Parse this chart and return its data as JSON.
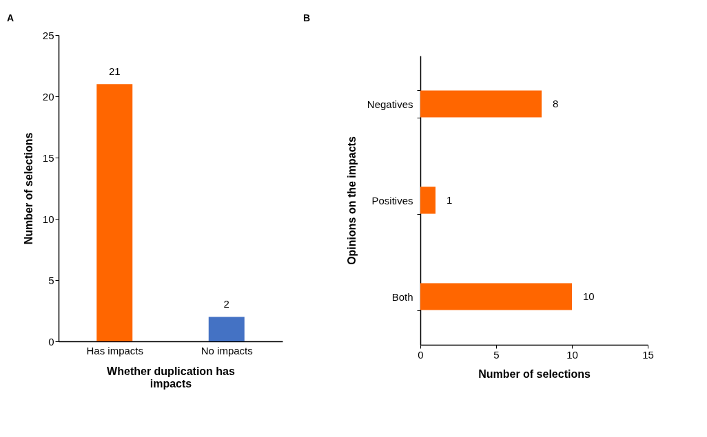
{
  "chart_data": [
    {
      "type": "bar",
      "title": "A",
      "xlabel": "Whether duplication has impacts",
      "ylabel": "Number of selections",
      "categories": [
        "Has impacts",
        "No impacts"
      ],
      "values": [
        21,
        2
      ],
      "colors": [
        "#ff6600",
        "#4472c4"
      ],
      "ylim": [
        0,
        25
      ],
      "yticks": [
        0,
        5,
        10,
        15,
        20,
        25
      ],
      "grid": false,
      "data_labels": true
    },
    {
      "type": "bar",
      "title": "B",
      "orientation": "horizontal",
      "xlabel": "Number of selections",
      "ylabel": "Opinions on the impacts",
      "categories": [
        "Negatives",
        "Positives",
        "Both"
      ],
      "values": [
        8,
        1,
        10
      ],
      "color": "#ff6600",
      "xlim": [
        0,
        15
      ],
      "xticks": [
        0,
        5,
        10,
        15
      ],
      "grid": false,
      "data_labels": true
    }
  ]
}
